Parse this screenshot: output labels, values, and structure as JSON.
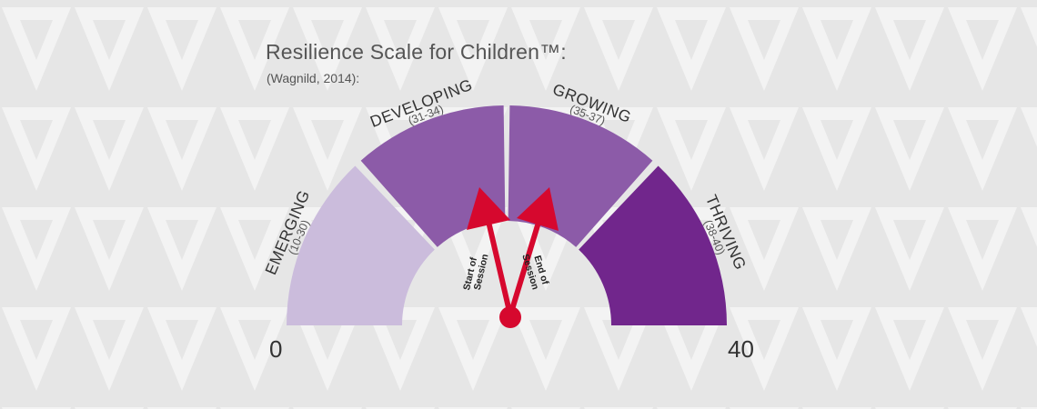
{
  "title": "Resilience Scale for Children™:",
  "subtitle": "(Wagnild, 2014):",
  "scale": {
    "min": 0,
    "max": 40,
    "min_label": "0",
    "max_label": "40"
  },
  "segments": [
    {
      "name": "EMERGING",
      "range": "(10-30)",
      "color": "#cbbcdc"
    },
    {
      "name": "DEVELOPING",
      "range": "(31-34)",
      "color": "#8c5ba8"
    },
    {
      "name": "GROWING",
      "range": "(35-37)",
      "color": "#8c5ba8"
    },
    {
      "name": "THRIVING",
      "range": "(38-40)",
      "color": "#71268c"
    }
  ],
  "markers": [
    {
      "label_line1": "Start of",
      "label_line2": "Session"
    },
    {
      "label_line1": "End of",
      "label_line2": "Session"
    }
  ],
  "colors": {
    "needle": "#d6082e",
    "background": "#e6e6e6",
    "pattern": "#f4f4f4"
  }
}
